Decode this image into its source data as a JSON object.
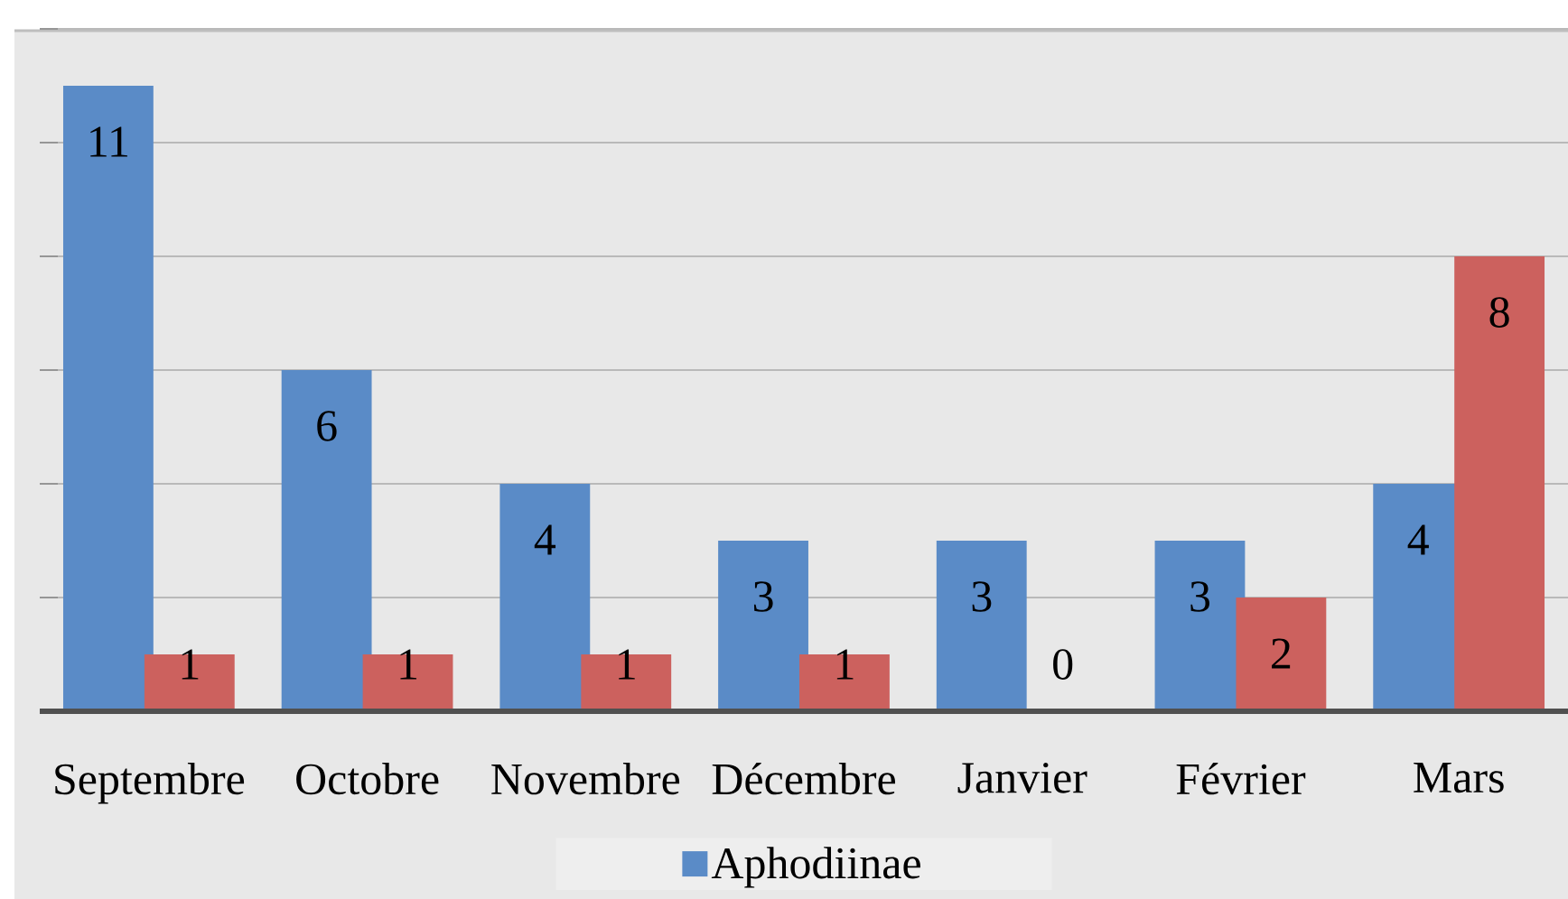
{
  "chart_data": {
    "type": "bar",
    "categories": [
      "Septembre",
      "Octobre",
      "Novembre",
      "Décembre",
      "Janvier",
      "Février",
      "Mars"
    ],
    "series": [
      {
        "name": "Aphodiinae",
        "color": "#5a8bc7",
        "values": [
          11,
          6,
          4,
          3,
          3,
          3,
          4
        ]
      },
      {
        "color": "#cc615e",
        "values": [
          1,
          1,
          1,
          1,
          0,
          2,
          8
        ]
      }
    ],
    "ylim": [
      0,
      12
    ],
    "yticks": [
      {
        "value": 0,
        "label": null
      },
      {
        "value": 2,
        "label": null
      },
      {
        "value": 4,
        "label": null
      },
      {
        "value": 6,
        "label": null
      },
      {
        "value": 8,
        "label": null
      },
      {
        "value": 10,
        "label": null
      },
      {
        "value": 12,
        "label": null
      }
    ],
    "grid": "y",
    "legend": "bottom",
    "data_labels": true,
    "tick_labels": "x"
  }
}
